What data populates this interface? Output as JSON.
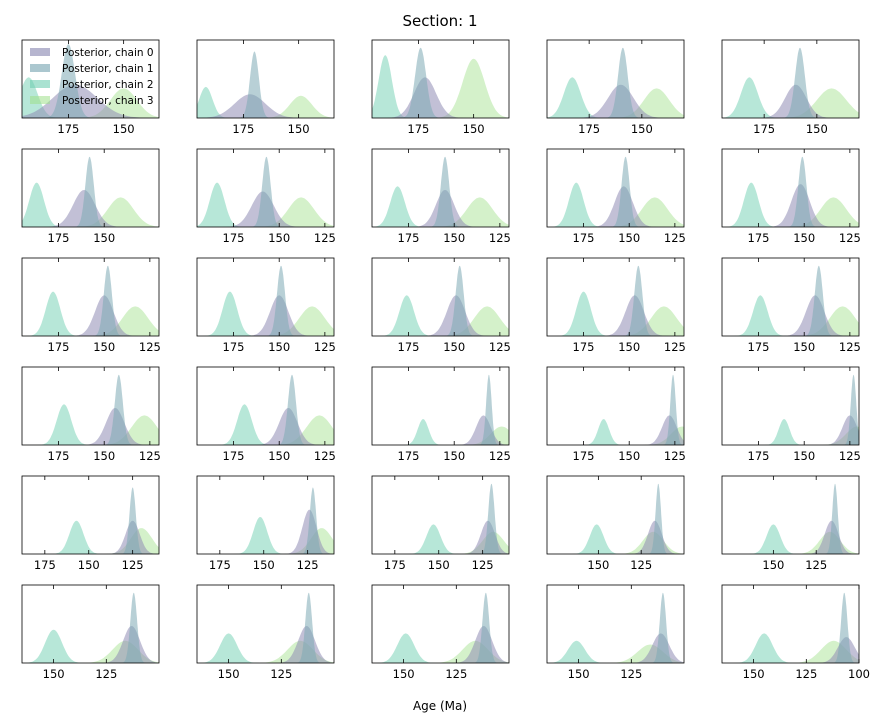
{
  "figure": {
    "suptitle": "Section: 1",
    "xlabel": "Age (Ma)"
  },
  "chart_data": {
    "type": "area",
    "title": "Section: 1",
    "xlabel": "Age (Ma)",
    "ylabel": "",
    "x_axis_reversed": true,
    "grid": false,
    "legend_placement": "upper-left of first panel",
    "series": [
      {
        "name": "Posterior, chain 0",
        "color": "#8f8db5",
        "opacity": 0.55
      },
      {
        "name": "Posterior, chain 1",
        "color": "#7ea9b5",
        "opacity": 0.55
      },
      {
        "name": "Posterior, chain 2",
        "color": "#6fcfb2",
        "opacity": 0.5
      },
      {
        "name": "Posterior, chain 3",
        "color": "#9fe08a",
        "opacity": 0.45
      }
    ],
    "panels": [
      {
        "xlim": [
          196,
          134
        ],
        "ticks": [
          175,
          150
        ],
        "peaks": [
          [
            172,
            10,
            0.45
          ],
          [
            175,
            3,
            1.0
          ],
          [
            193,
            4,
            0.55
          ],
          [
            150,
            6,
            0.4
          ]
        ]
      },
      {
        "xlim": [
          196,
          134
        ],
        "ticks": [
          175,
          150
        ],
        "peaks": [
          [
            172,
            7,
            0.32
          ],
          [
            170,
            2,
            0.9
          ],
          [
            192,
            3,
            0.42
          ],
          [
            149,
            5,
            0.3
          ]
        ]
      },
      {
        "xlim": [
          196,
          134
        ],
        "ticks": [
          175,
          150
        ],
        "peaks": [
          [
            172,
            5,
            0.55
          ],
          [
            174,
            2.5,
            0.95
          ],
          [
            190,
            3,
            0.85
          ],
          [
            150,
            5,
            0.8
          ]
        ]
      },
      {
        "xlim": [
          195,
          130
        ],
        "ticks": [
          175,
          150
        ],
        "peaks": [
          [
            160,
            6,
            0.45
          ],
          [
            159,
            2.3,
            0.95
          ],
          [
            183,
            4,
            0.55
          ],
          [
            143,
            6,
            0.4
          ]
        ]
      },
      {
        "xlim": [
          195,
          130
        ],
        "ticks": [
          175,
          150
        ],
        "peaks": [
          [
            160,
            5,
            0.45
          ],
          [
            158,
            2.3,
            0.95
          ],
          [
            182,
            4,
            0.55
          ],
          [
            143,
            7,
            0.4
          ]
        ]
      },
      {
        "xlim": [
          195,
          120
        ],
        "ticks": [
          175,
          150
        ],
        "peaks": [
          [
            161,
            6,
            0.5
          ],
          [
            158,
            2.3,
            0.95
          ],
          [
            187,
            4,
            0.6
          ],
          [
            141,
            7,
            0.4
          ]
        ]
      },
      {
        "xlim": [
          195,
          120
        ],
        "ticks": [
          175,
          150,
          125
        ],
        "peaks": [
          [
            159,
            6,
            0.48
          ],
          [
            157,
            2.3,
            0.95
          ],
          [
            184,
            4,
            0.6
          ],
          [
            138,
            7,
            0.4
          ]
        ]
      },
      {
        "xlim": [
          195,
          120
        ],
        "ticks": [
          175,
          150,
          125
        ],
        "peaks": [
          [
            155,
            5,
            0.5
          ],
          [
            155,
            2.3,
            0.95
          ],
          [
            181,
            4,
            0.55
          ],
          [
            136,
            7,
            0.4
          ]
        ]
      },
      {
        "xlim": [
          195,
          120
        ],
        "ticks": [
          175,
          150,
          125
        ],
        "peaks": [
          [
            153,
            5,
            0.55
          ],
          [
            152,
            2.2,
            0.95
          ],
          [
            179,
            4,
            0.6
          ],
          [
            136,
            7,
            0.4
          ]
        ]
      },
      {
        "xlim": [
          195,
          120
        ],
        "ticks": [
          175,
          150,
          125
        ],
        "peaks": [
          [
            152,
            5,
            0.58
          ],
          [
            151,
            2.2,
            0.95
          ],
          [
            179,
            4,
            0.6
          ],
          [
            134,
            7,
            0.4
          ]
        ]
      },
      {
        "xlim": [
          195,
          120
        ],
        "ticks": [
          175,
          150,
          125
        ],
        "peaks": [
          [
            150,
            5,
            0.55
          ],
          [
            148,
            2.2,
            0.95
          ],
          [
            178,
            4,
            0.6
          ],
          [
            133,
            7,
            0.4
          ]
        ]
      },
      {
        "xlim": [
          195,
          120
        ],
        "ticks": [
          175,
          150,
          125
        ],
        "peaks": [
          [
            150,
            5,
            0.55
          ],
          [
            149,
            2.2,
            0.95
          ],
          [
            177,
            4,
            0.6
          ],
          [
            132,
            7,
            0.4
          ]
        ]
      },
      {
        "xlim": [
          195,
          120
        ],
        "ticks": [
          175,
          150,
          125
        ],
        "peaks": [
          [
            149,
            5,
            0.55
          ],
          [
            147,
            2.2,
            0.95
          ],
          [
            176,
            4,
            0.55
          ],
          [
            132,
            7,
            0.4
          ]
        ]
      },
      {
        "xlim": [
          195,
          120
        ],
        "ticks": [
          175,
          150,
          125
        ],
        "peaks": [
          [
            147,
            5,
            0.55
          ],
          [
            145,
            2.2,
            0.95
          ],
          [
            175,
            4,
            0.6
          ],
          [
            131,
            7,
            0.4
          ]
        ]
      },
      {
        "xlim": [
          195,
          120
        ],
        "ticks": [
          175,
          150,
          125
        ],
        "peaks": [
          [
            144,
            5,
            0.55
          ],
          [
            142,
            2.2,
            0.95
          ],
          [
            174,
            4,
            0.55
          ],
          [
            129,
            7,
            0.4
          ]
        ]
      },
      {
        "xlim": [
          195,
          120
        ],
        "ticks": [
          175,
          150,
          125
        ],
        "peaks": [
          [
            144,
            5,
            0.5
          ],
          [
            142,
            2.2,
            0.95
          ],
          [
            172,
            4,
            0.55
          ],
          [
            128,
            7,
            0.4
          ]
        ]
      },
      {
        "xlim": [
          195,
          120
        ],
        "ticks": [
          175,
          150,
          125
        ],
        "peaks": [
          [
            145,
            5,
            0.5
          ],
          [
            143,
            2.2,
            0.95
          ],
          [
            169,
            4,
            0.55
          ],
          [
            128,
            7,
            0.4
          ]
        ]
      },
      {
        "xlim": [
          195,
          120
        ],
        "ticks": [
          175,
          150,
          125
        ],
        "peaks": [
          [
            134,
            4,
            0.4
          ],
          [
            131,
            1.5,
            0.95
          ],
          [
            167,
            3,
            0.35
          ],
          [
            124,
            6,
            0.25
          ]
        ]
      },
      {
        "xlim": [
          195,
          120
        ],
        "ticks": [
          175,
          150,
          125
        ],
        "peaks": [
          [
            128,
            4,
            0.4
          ],
          [
            126,
            1.5,
            0.95
          ],
          [
            164,
            3,
            0.35
          ],
          [
            121,
            6,
            0.25
          ]
        ]
      },
      {
        "xlim": [
          195,
          120
        ],
        "ticks": [
          175,
          150,
          125
        ],
        "peaks": [
          [
            125,
            4,
            0.4
          ],
          [
            123,
            1.5,
            0.95
          ],
          [
            161,
            3,
            0.35
          ],
          [
            121,
            6,
            0.25
          ]
        ]
      },
      {
        "xlim": [
          188,
          110
        ],
        "ticks": [
          175,
          150,
          125
        ],
        "peaks": [
          [
            125,
            4,
            0.45
          ],
          [
            125,
            1.8,
            0.9
          ],
          [
            157,
            4,
            0.45
          ],
          [
            120,
            6,
            0.35
          ]
        ]
      },
      {
        "xlim": [
          188,
          110
        ],
        "ticks": [
          175,
          150,
          125
        ],
        "peaks": [
          [
            124,
            4,
            0.6
          ],
          [
            122,
            1.8,
            0.9
          ],
          [
            152,
            4,
            0.5
          ],
          [
            117,
            6,
            0.35
          ]
        ]
      },
      {
        "xlim": [
          188,
          110
        ],
        "ticks": [
          175,
          150,
          125
        ],
        "peaks": [
          [
            122,
            4,
            0.45
          ],
          [
            120,
            1.8,
            0.95
          ],
          [
            153,
            4,
            0.4
          ],
          [
            119,
            6,
            0.3
          ]
        ]
      },
      {
        "xlim": [
          180,
          100
        ],
        "ticks": [
          150,
          125
        ],
        "peaks": [
          [
            117,
            4,
            0.45
          ],
          [
            115,
            1.6,
            0.95
          ],
          [
            151,
            4,
            0.4
          ],
          [
            118,
            6,
            0.3
          ]
        ]
      },
      {
        "xlim": [
          180,
          100
        ],
        "ticks": [
          150,
          125
        ],
        "peaks": [
          [
            116,
            4,
            0.45
          ],
          [
            114,
            1.6,
            0.95
          ],
          [
            150,
            4,
            0.4
          ],
          [
            117,
            6,
            0.3
          ]
        ]
      },
      {
        "xlim": [
          165,
          100
        ],
        "ticks": [
          150,
          125
        ],
        "peaks": [
          [
            113,
            4,
            0.5
          ],
          [
            112,
            1.6,
            0.95
          ],
          [
            150,
            4,
            0.45
          ],
          [
            116,
            6,
            0.3
          ]
        ]
      },
      {
        "xlim": [
          165,
          100
        ],
        "ticks": [
          150,
          125
        ],
        "peaks": [
          [
            113,
            4,
            0.5
          ],
          [
            112,
            1.6,
            0.95
          ],
          [
            150,
            4,
            0.4
          ],
          [
            116,
            6,
            0.3
          ]
        ]
      },
      {
        "xlim": [
          165,
          100
        ],
        "ticks": [
          150,
          125
        ],
        "peaks": [
          [
            112,
            4,
            0.5
          ],
          [
            111,
            1.6,
            0.95
          ],
          [
            149,
            4,
            0.4
          ],
          [
            116,
            6,
            0.3
          ]
        ]
      },
      {
        "xlim": [
          165,
          100
        ],
        "ticks": [
          150,
          125
        ],
        "peaks": [
          [
            111,
            4,
            0.4
          ],
          [
            110,
            1.5,
            0.95
          ],
          [
            151,
            4,
            0.3
          ],
          [
            116,
            6,
            0.25
          ]
        ]
      },
      {
        "xlim": [
          165,
          100
        ],
        "ticks": [
          150,
          125,
          100
        ],
        "peaks": [
          [
            106,
            4,
            0.35
          ],
          [
            107,
            1.5,
            0.95
          ],
          [
            145,
            4,
            0.4
          ],
          [
            112,
            6,
            0.3
          ]
        ]
      }
    ]
  }
}
